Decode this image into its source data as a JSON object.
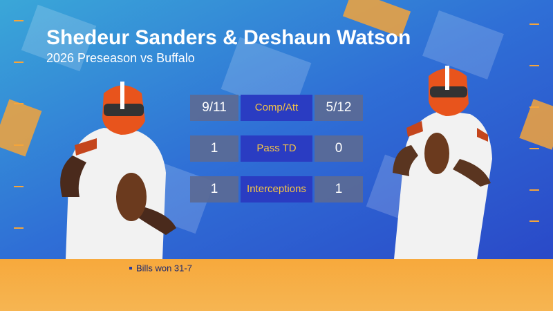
{
  "header": {
    "title": "Shedeur Sanders & Deshaun Watson",
    "subtitle": "2026 Preseason vs Buffalo"
  },
  "stats": {
    "rows": [
      {
        "left": "9/11",
        "label": "Comp/Att",
        "right": "5/12"
      },
      {
        "left": 1,
        "label": "Pass TD",
        "right": 0
      },
      {
        "left": 1,
        "label": "Interceptions",
        "right": 1
      }
    ]
  },
  "footer": {
    "note": "Bills won 31-7"
  }
}
